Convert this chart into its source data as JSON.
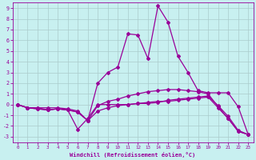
{
  "xlabel": "Windchill (Refroidissement éolien,°C)",
  "background_color": "#c8f0f0",
  "line_color": "#990099",
  "grid_color": "#aacccc",
  "xlim": [
    -0.5,
    23.5
  ],
  "ylim": [
    -3.5,
    9.5
  ],
  "xticks": [
    0,
    1,
    2,
    3,
    4,
    5,
    6,
    7,
    8,
    9,
    10,
    11,
    12,
    13,
    14,
    15,
    16,
    17,
    18,
    19,
    20,
    21,
    22,
    23
  ],
  "yticks": [
    -3,
    -2,
    -1,
    0,
    1,
    2,
    3,
    4,
    5,
    6,
    7,
    8,
    9
  ],
  "series": [
    [
      0.0,
      -0.3,
      -0.3,
      -0.3,
      -0.3,
      -0.4,
      -0.6,
      -1.5,
      -0.6,
      -0.3,
      -0.1,
      0.0,
      0.1,
      0.1,
      0.2,
      0.4,
      0.5,
      0.6,
      0.7,
      0.8,
      -0.1,
      -1.1,
      -2.4,
      -2.8
    ],
    [
      0.0,
      -0.3,
      -0.3,
      -0.5,
      -0.4,
      -0.5,
      -0.7,
      -1.5,
      -0.1,
      0.3,
      0.5,
      0.8,
      1.0,
      1.2,
      1.3,
      1.4,
      1.4,
      1.3,
      1.2,
      1.0,
      -0.2,
      -1.3,
      -2.5,
      -2.8
    ],
    [
      0.0,
      -0.3,
      -0.4,
      -0.5,
      -0.4,
      -0.5,
      -0.7,
      -1.5,
      2.0,
      3.0,
      3.5,
      6.6,
      6.5,
      4.3,
      9.2,
      7.7,
      4.5,
      3.0,
      1.3,
      1.1,
      1.1,
      1.1,
      -0.2,
      -2.8
    ],
    [
      0.0,
      -0.3,
      -0.4,
      -0.5,
      -0.4,
      -0.5,
      -2.3,
      -1.3,
      0.0,
      0.0,
      0.0,
      0.0,
      0.1,
      0.2,
      0.3,
      0.3,
      0.4,
      0.5,
      0.6,
      0.7,
      -0.3,
      -1.3,
      -2.5,
      -2.8
    ]
  ]
}
